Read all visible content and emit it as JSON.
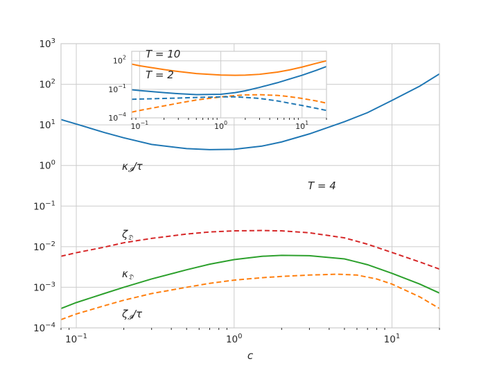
{
  "chart_data": [
    {
      "type": "line",
      "xlabel": "c",
      "ylabel": "",
      "xscale": "log",
      "yscale": "log",
      "xlim": [
        0.08,
        20
      ],
      "ylim": [
        0.0001,
        1000
      ],
      "x_ticks": [
        "10^-1",
        "10^0",
        "10^1"
      ],
      "y_ticks": [
        "10^-4",
        "10^-3",
        "10^-2",
        "10^-1",
        "10^0",
        "10^1",
        "10^2",
        "10^3"
      ],
      "grid": true,
      "annotations": [
        {
          "text": "T = 4"
        }
      ],
      "series": [
        {
          "name": "κ_I/τ",
          "color": "#1f77b4",
          "dash": false,
          "x": [
            0.08,
            0.1,
            0.15,
            0.2,
            0.3,
            0.5,
            0.7,
            1.0,
            1.5,
            2,
            3,
            5,
            7,
            10,
            15,
            20
          ],
          "y": [
            13.5,
            10.5,
            6.5,
            4.8,
            3.3,
            2.6,
            2.45,
            2.5,
            3.0,
            3.8,
            6.0,
            12,
            20,
            40,
            90,
            180
          ]
        },
        {
          "name": "ζ_D",
          "color": "#d62728",
          "dash": true,
          "x": [
            0.08,
            0.1,
            0.15,
            0.2,
            0.3,
            0.5,
            0.7,
            1.0,
            1.5,
            2,
            3,
            5,
            7,
            10,
            15,
            20
          ],
          "y": [
            0.0058,
            0.0071,
            0.0097,
            0.0125,
            0.016,
            0.0205,
            0.023,
            0.0245,
            0.025,
            0.0245,
            0.022,
            0.0165,
            0.0115,
            0.0072,
            0.0042,
            0.0028
          ]
        },
        {
          "name": "κ_D",
          "color": "#2ca02c",
          "dash": false,
          "x": [
            0.08,
            0.1,
            0.15,
            0.2,
            0.3,
            0.5,
            0.7,
            1.0,
            1.5,
            2,
            3,
            5,
            7,
            10,
            15,
            20
          ],
          "y": [
            0.0003,
            0.00042,
            0.0007,
            0.001,
            0.0016,
            0.0027,
            0.0037,
            0.0048,
            0.0058,
            0.0061,
            0.006,
            0.005,
            0.0036,
            0.0022,
            0.0012,
            0.00072
          ]
        },
        {
          "name": "ζ_I/τ",
          "color": "#ff7f0e",
          "dash": true,
          "x": [
            0.08,
            0.1,
            0.15,
            0.2,
            0.3,
            0.5,
            0.7,
            1.0,
            1.5,
            2,
            3,
            4.5,
            6,
            8,
            10,
            15,
            20
          ],
          "y": [
            0.00016,
            0.00022,
            0.00035,
            0.00048,
            0.0007,
            0.001,
            0.00125,
            0.0015,
            0.00172,
            0.00185,
            0.002,
            0.0021,
            0.002,
            0.0016,
            0.0012,
            0.00058,
            0.0003
          ]
        }
      ]
    },
    {
      "type": "line",
      "xscale": "log",
      "yscale": "log",
      "xlim": [
        0.08,
        20
      ],
      "ylim": [
        0.0001,
        1000
      ],
      "x_ticks": [
        "10^-1",
        "10^0",
        "10^1"
      ],
      "y_ticks": [
        "10^-4",
        "10^-1",
        "10^2"
      ],
      "grid": true,
      "annotations": [
        {
          "text": "T = 10",
          "color": "#ff7f0e"
        },
        {
          "text": "T = 2",
          "color": "#1f77b4"
        }
      ],
      "series": [
        {
          "name": "",
          "color": "#ff7f0e",
          "dash": false,
          "x": [
            0.08,
            0.1,
            0.2,
            0.3,
            0.5,
            1.0,
            1.5,
            2,
            3,
            5,
            7,
            10,
            15,
            20
          ],
          "y": [
            45,
            30,
            12,
            7.5,
            4.5,
            3.2,
            3.0,
            3.1,
            3.8,
            6.5,
            11,
            22,
            55,
            100
          ]
        },
        {
          "name": "",
          "color": "#1f77b4",
          "dash": false,
          "x": [
            0.08,
            0.1,
            0.2,
            0.3,
            0.5,
            1.0,
            1.5,
            2,
            3,
            5,
            7,
            10,
            15,
            20
          ],
          "y": [
            0.09,
            0.075,
            0.045,
            0.035,
            0.028,
            0.03,
            0.045,
            0.07,
            0.16,
            0.5,
            1.2,
            3,
            10,
            25
          ]
        },
        {
          "name": "",
          "color": "#ff7f0e",
          "dash": true,
          "x": [
            0.08,
            0.1,
            0.2,
            0.3,
            0.5,
            1.0,
            1.5,
            2,
            3,
            5,
            7,
            10,
            15,
            20
          ],
          "y": [
            0.0004,
            0.0006,
            0.0018,
            0.0035,
            0.0075,
            0.016,
            0.022,
            0.026,
            0.027,
            0.023,
            0.017,
            0.011,
            0.006,
            0.0035
          ]
        },
        {
          "name": "",
          "color": "#1f77b4",
          "dash": true,
          "x": [
            0.08,
            0.1,
            0.2,
            0.3,
            0.5,
            1.0,
            1.5,
            2,
            3,
            5,
            7,
            10,
            15,
            20
          ],
          "y": [
            0.009,
            0.0095,
            0.011,
            0.012,
            0.014,
            0.016,
            0.016,
            0.014,
            0.011,
            0.006,
            0.0035,
            0.002,
            0.001,
            0.0006
          ]
        }
      ]
    }
  ]
}
